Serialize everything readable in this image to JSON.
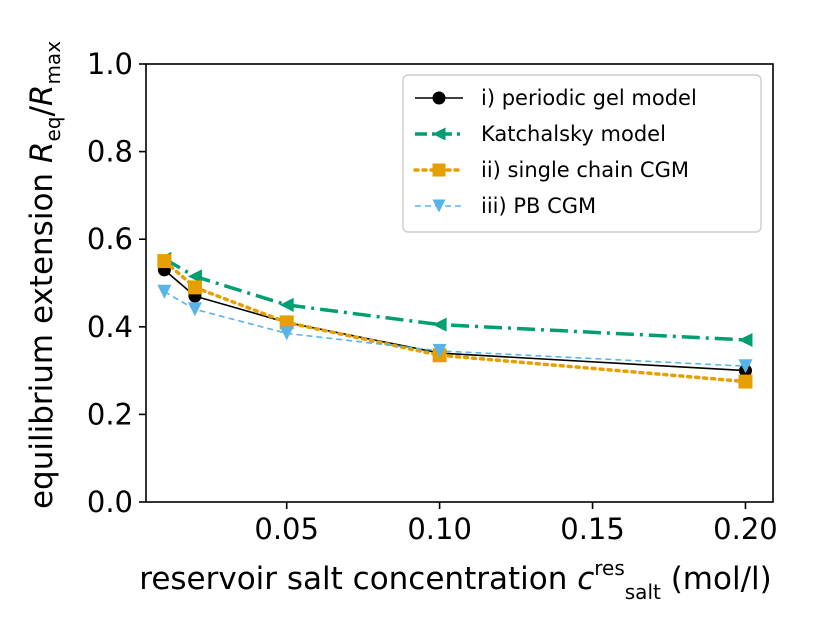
{
  "chart_data": {
    "type": "line",
    "title": "",
    "xlabel": {
      "main": "reservoir salt concentration ",
      "symbol": "c",
      "sub": "salt",
      "sup": "res",
      "unit": " (mol/l)"
    },
    "ylabel": {
      "main": "equilibrium extension ",
      "num": "R",
      "num_sub": "eq",
      "slash": "/",
      "den": "R",
      "den_sub": "max"
    },
    "xlim": [
      0.004,
      0.209
    ],
    "ylim": [
      0.0,
      1.0
    ],
    "xticks": [
      0.05,
      0.1,
      0.15,
      0.2
    ],
    "xtick_labels": [
      "0.05",
      "0.10",
      "0.15",
      "0.20"
    ],
    "yticks": [
      0.0,
      0.2,
      0.4,
      0.6,
      0.8,
      1.0
    ],
    "ytick_labels": [
      "0.0",
      "0.2",
      "0.4",
      "0.6",
      "0.8",
      "1.0"
    ],
    "grid": false,
    "legend_position": "top-right",
    "series": [
      {
        "name": "i) periodic gel model",
        "color": "#000000",
        "line": "solid",
        "marker": "circle",
        "x": [
          0.01,
          0.02,
          0.05,
          0.1,
          0.2
        ],
        "y": [
          0.53,
          0.47,
          0.41,
          0.34,
          0.3
        ]
      },
      {
        "name": "Katchalsky model",
        "color": "#009e73",
        "line": "dashdot",
        "marker": "triangle-left",
        "x": [
          0.01,
          0.02,
          0.05,
          0.1,
          0.2
        ],
        "y": [
          0.555,
          0.515,
          0.45,
          0.405,
          0.37
        ]
      },
      {
        "name": "ii) single chain CGM",
        "color": "#e69f00",
        "line": "dotted",
        "marker": "square",
        "x": [
          0.01,
          0.02,
          0.05,
          0.1,
          0.2
        ],
        "y": [
          0.55,
          0.49,
          0.41,
          0.335,
          0.275
        ]
      },
      {
        "name": "iii) PB CGM",
        "color": "#56b4e9",
        "line": "dashed",
        "marker": "triangle-down",
        "x": [
          0.01,
          0.02,
          0.05,
          0.1,
          0.2
        ],
        "y": [
          0.48,
          0.44,
          0.385,
          0.345,
          0.31
        ]
      }
    ]
  }
}
